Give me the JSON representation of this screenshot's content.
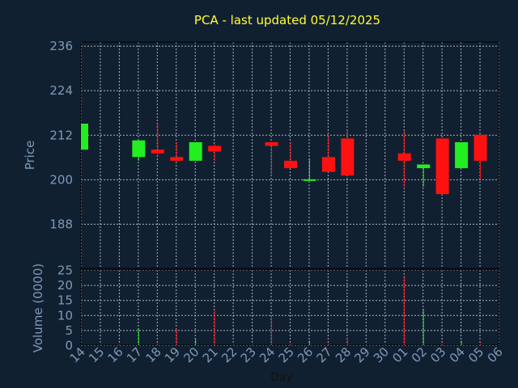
{
  "chart_data": {
    "type": "candlestick",
    "title": "PCA - last updated 05/12/2025",
    "xlabel": "Day",
    "price_panel": {
      "ylabel": "Price",
      "yticks": [
        "236",
        "224",
        "212",
        "200",
        "188"
      ],
      "ylim": [
        176,
        237
      ],
      "grid": true
    },
    "volume_panel": {
      "ylabel": "Volume (0000)",
      "yticks": [
        "25",
        "20",
        "15",
        "10",
        "5",
        "0"
      ],
      "ylim": [
        0,
        25
      ],
      "grid": true
    },
    "x_labels": [
      "14",
      "15",
      "16",
      "17",
      "18",
      "19",
      "20",
      "21",
      "22",
      "23",
      "24",
      "25",
      "26",
      "27",
      "28",
      "29",
      "30",
      "01",
      "02",
      "03",
      "04",
      "05",
      "06"
    ],
    "candles": [
      {
        "day": "14",
        "open": 208,
        "high": 215,
        "low": 208,
        "close": 215,
        "volume": 0
      },
      {
        "day": "17",
        "open": 206,
        "high": 210.5,
        "low": 205,
        "close": 210.5,
        "volume": 5.5
      },
      {
        "day": "18",
        "open": 208,
        "high": 215,
        "low": 206,
        "close": 207,
        "volume": 0.5
      },
      {
        "day": "19",
        "open": 206,
        "high": 210,
        "low": 205,
        "close": 205,
        "volume": 5.5
      },
      {
        "day": "20",
        "open": 205,
        "high": 210,
        "low": 205,
        "close": 210,
        "volume": 2
      },
      {
        "day": "21",
        "open": 209,
        "high": 209.5,
        "low": 205,
        "close": 207.5,
        "volume": 11.5
      },
      {
        "day": "24",
        "open": 210,
        "high": 210,
        "low": 201,
        "close": 209,
        "volume": 10
      },
      {
        "day": "25",
        "open": 205,
        "high": 210,
        "low": 203,
        "close": 203,
        "volume": 0.5
      },
      {
        "day": "26",
        "open": 200,
        "high": 205.5,
        "low": 199.5,
        "close": 200,
        "volume": 1.5
      },
      {
        "day": "27",
        "open": 206,
        "high": 212,
        "low": 202,
        "close": 202,
        "volume": 0.5
      },
      {
        "day": "28",
        "open": 211,
        "high": 213,
        "low": 201,
        "close": 201,
        "volume": 2.5
      },
      {
        "day": "01",
        "open": 207,
        "high": 213,
        "low": 198,
        "close": 205,
        "volume": 22.5
      },
      {
        "day": "02",
        "open": 203,
        "high": 204,
        "low": 198,
        "close": 204,
        "volume": 12
      },
      {
        "day": "03",
        "open": 211,
        "high": 211,
        "low": 196,
        "close": 196,
        "volume": 0.5
      },
      {
        "day": "04",
        "open": 203,
        "high": 210,
        "low": 203,
        "close": 210,
        "volume": 1.5
      },
      {
        "day": "05",
        "open": 212,
        "high": 212,
        "low": 200,
        "close": 205,
        "volume": 0.5
      }
    ],
    "colors": {
      "up": "#22ee22",
      "down": "#ff1111",
      "grid": "#a8b4c4",
      "text": "#7d9ab8",
      "title": "#ffff33",
      "background": "#112031"
    }
  }
}
